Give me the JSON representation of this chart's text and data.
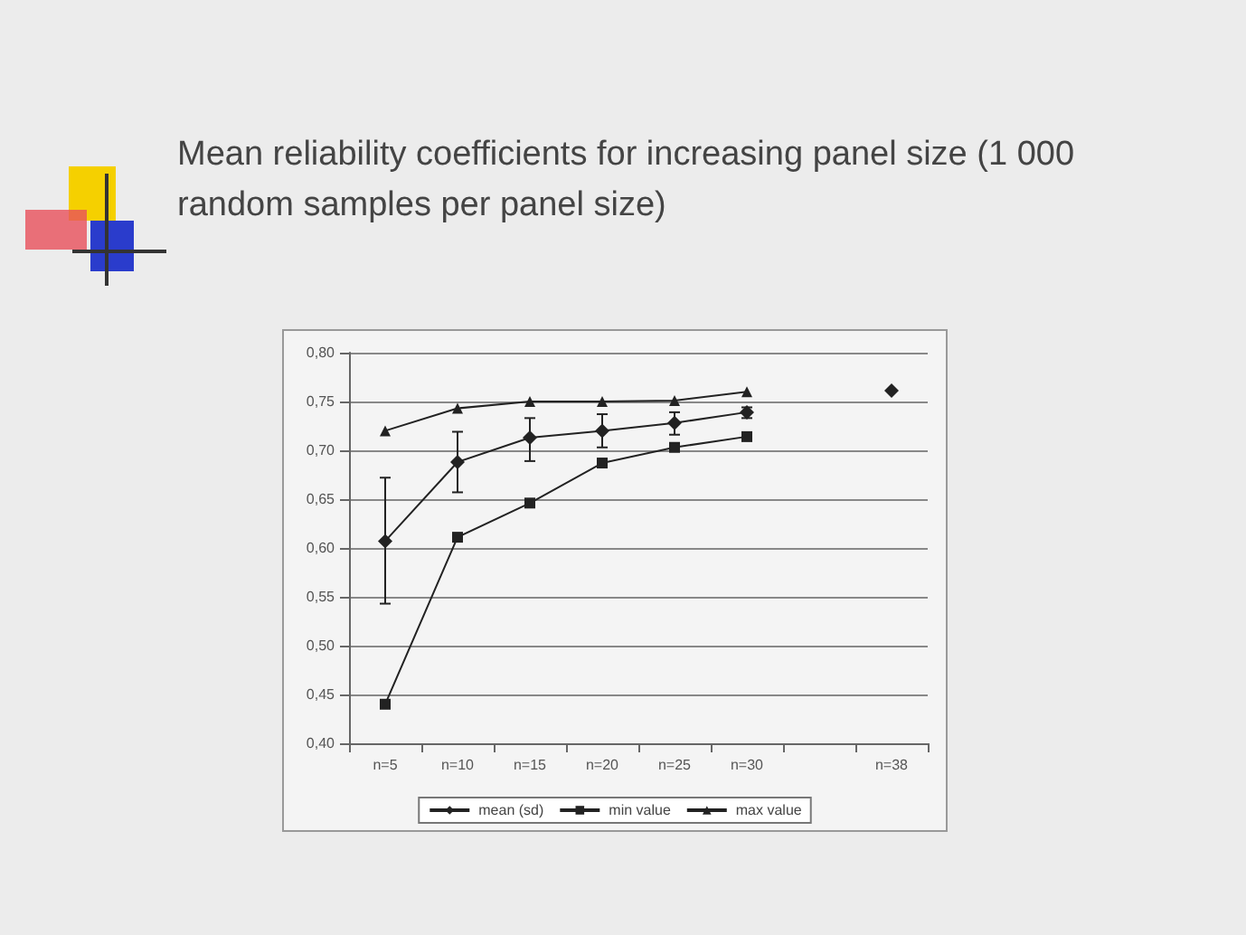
{
  "chart_data": {
    "type": "line",
    "title": "Mean reliability coefficients for increasing panel size (1 000 random samples per panel size)",
    "categories": [
      "n=5",
      "n=10",
      "n=15",
      "n=20",
      "n=25",
      "n=30",
      null,
      "n=38"
    ],
    "series": [
      {
        "name": "mean (sd)",
        "color": "#222222",
        "marker": "diamond",
        "values": [
          0.607,
          0.688,
          0.713,
          0.72,
          0.728,
          0.739,
          null,
          0.761
        ],
        "errors": [
          [
            0.543,
            0.672
          ],
          [
            0.657,
            0.719
          ],
          [
            0.689,
            0.733
          ],
          [
            0.703,
            0.737
          ],
          [
            0.716,
            0.739
          ],
          [
            0.733,
            0.744
          ],
          null,
          null
        ]
      },
      {
        "name": "min value",
        "color": "#222222",
        "marker": "square",
        "values": [
          0.44,
          0.611,
          0.646,
          0.687,
          0.703,
          0.714,
          null,
          null
        ]
      },
      {
        "name": "max value",
        "color": "#222222",
        "marker": "triangle",
        "values": [
          0.72,
          0.743,
          0.75,
          0.75,
          0.751,
          0.76,
          null,
          null
        ]
      }
    ],
    "ylim": [
      0.4,
      0.8
    ],
    "yticks": [
      {
        "value": 0.4,
        "label": "0,40"
      },
      {
        "value": 0.45,
        "label": "0,45"
      },
      {
        "value": 0.5,
        "label": "0,50"
      },
      {
        "value": 0.55,
        "label": "0,55"
      },
      {
        "value": 0.6,
        "label": "0,60"
      },
      {
        "value": 0.65,
        "label": "0,65"
      },
      {
        "value": 0.7,
        "label": "0,70"
      },
      {
        "value": 0.75,
        "label": "0,75"
      },
      {
        "value": 0.8,
        "label": "0,80"
      }
    ],
    "grid": "y",
    "legend": "bottom",
    "line_style": "solid"
  }
}
